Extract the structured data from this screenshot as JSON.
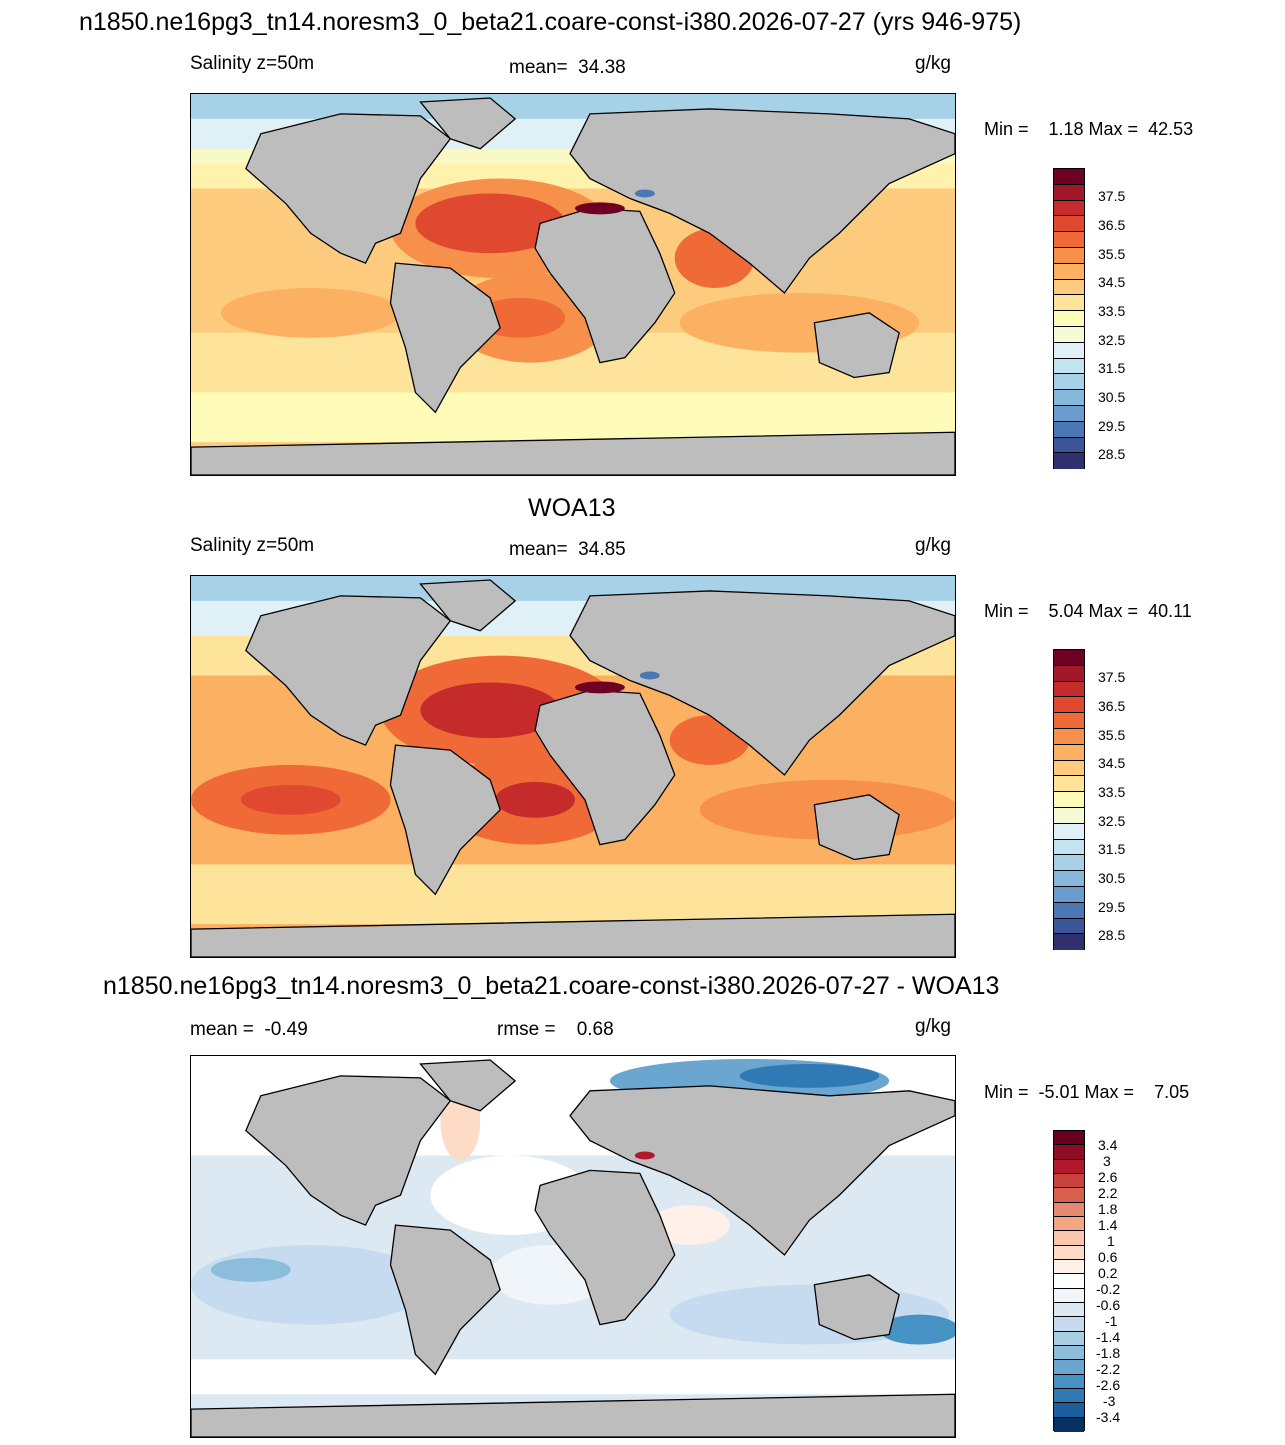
{
  "main_title": "n1850.ne16pg3_tn14.noresm3_0_beta21.coare-const-i380.2026-07-27 (yrs 946-975)",
  "panels": [
    {
      "title": "",
      "left": "Salinity z=50m",
      "center": "mean=  34.38",
      "units": "g/kg",
      "minmax": "Min =    1.18 Max =  42.53",
      "colorbar": {
        "colors": [
          "#6e0021",
          "#a0182a",
          "#c52b2b",
          "#e0492f",
          "#ef6a36",
          "#f7904a",
          "#fbb062",
          "#fdcb7e",
          "#fee49a",
          "#fffbb8",
          "#f4fbd6",
          "#dff1f7",
          "#c4e3f0",
          "#a7d1e7",
          "#87b8dc",
          "#6a9ccd",
          "#4b78b5",
          "#3c5599",
          "#30306e"
        ],
        "labels": [
          "37.5",
          "36.5",
          "35.5",
          "34.5",
          "33.5",
          "32.5",
          "31.5",
          "30.5",
          "29.5",
          "28.5"
        ]
      }
    },
    {
      "title": "WOA13",
      "left": "Salinity z=50m",
      "center": "mean=  34.85",
      "units": "g/kg",
      "minmax": "Min =    5.04 Max =  40.11",
      "colorbar": {
        "colors": [
          "#6e0021",
          "#a0182a",
          "#c52b2b",
          "#e0492f",
          "#ef6a36",
          "#f7904a",
          "#fbb062",
          "#fdcb7e",
          "#fee49a",
          "#fffbb8",
          "#f4fbd6",
          "#dff1f7",
          "#c4e3f0",
          "#a7d1e7",
          "#87b8dc",
          "#6a9ccd",
          "#4b78b5",
          "#3c5599",
          "#30306e"
        ],
        "labels": [
          "37.5",
          "36.5",
          "35.5",
          "34.5",
          "33.5",
          "32.5",
          "31.5",
          "30.5",
          "29.5",
          "28.5"
        ]
      }
    },
    {
      "title": "n1850.ne16pg3_tn14.noresm3_0_beta21.coare-const-i380.2026-07-27 - WOA13",
      "left": "mean =  -0.49",
      "center": "rmse =    0.68",
      "units": "g/kg",
      "minmax": "Min =  -5.01 Max =    7.05",
      "colorbar": {
        "colors": [
          "#67001f",
          "#8e0d25",
          "#b2182b",
          "#c8413f",
          "#d6604d",
          "#e38a71",
          "#f4a582",
          "#f8c6ac",
          "#fddbc7",
          "#fff1e8",
          "#ffffff",
          "#f0f5fa",
          "#dce9f3",
          "#c6dbef",
          "#a8cde5",
          "#8cbddb",
          "#6aa6cf",
          "#4692c4",
          "#2f79b5",
          "#1c5e9e",
          "#053061"
        ],
        "labels": [
          "3.4",
          "3",
          "2.6",
          "2.2",
          "1.8",
          "1.4",
          "1",
          "0.6",
          "0.2",
          "-0.2",
          "-0.6",
          "-1",
          "-1.4",
          "-1.8",
          "-2.2",
          "-2.6",
          "-3",
          "-3.4"
        ]
      }
    }
  ],
  "colors": {
    "land": "#bdbdbd",
    "coast": "#000000"
  }
}
